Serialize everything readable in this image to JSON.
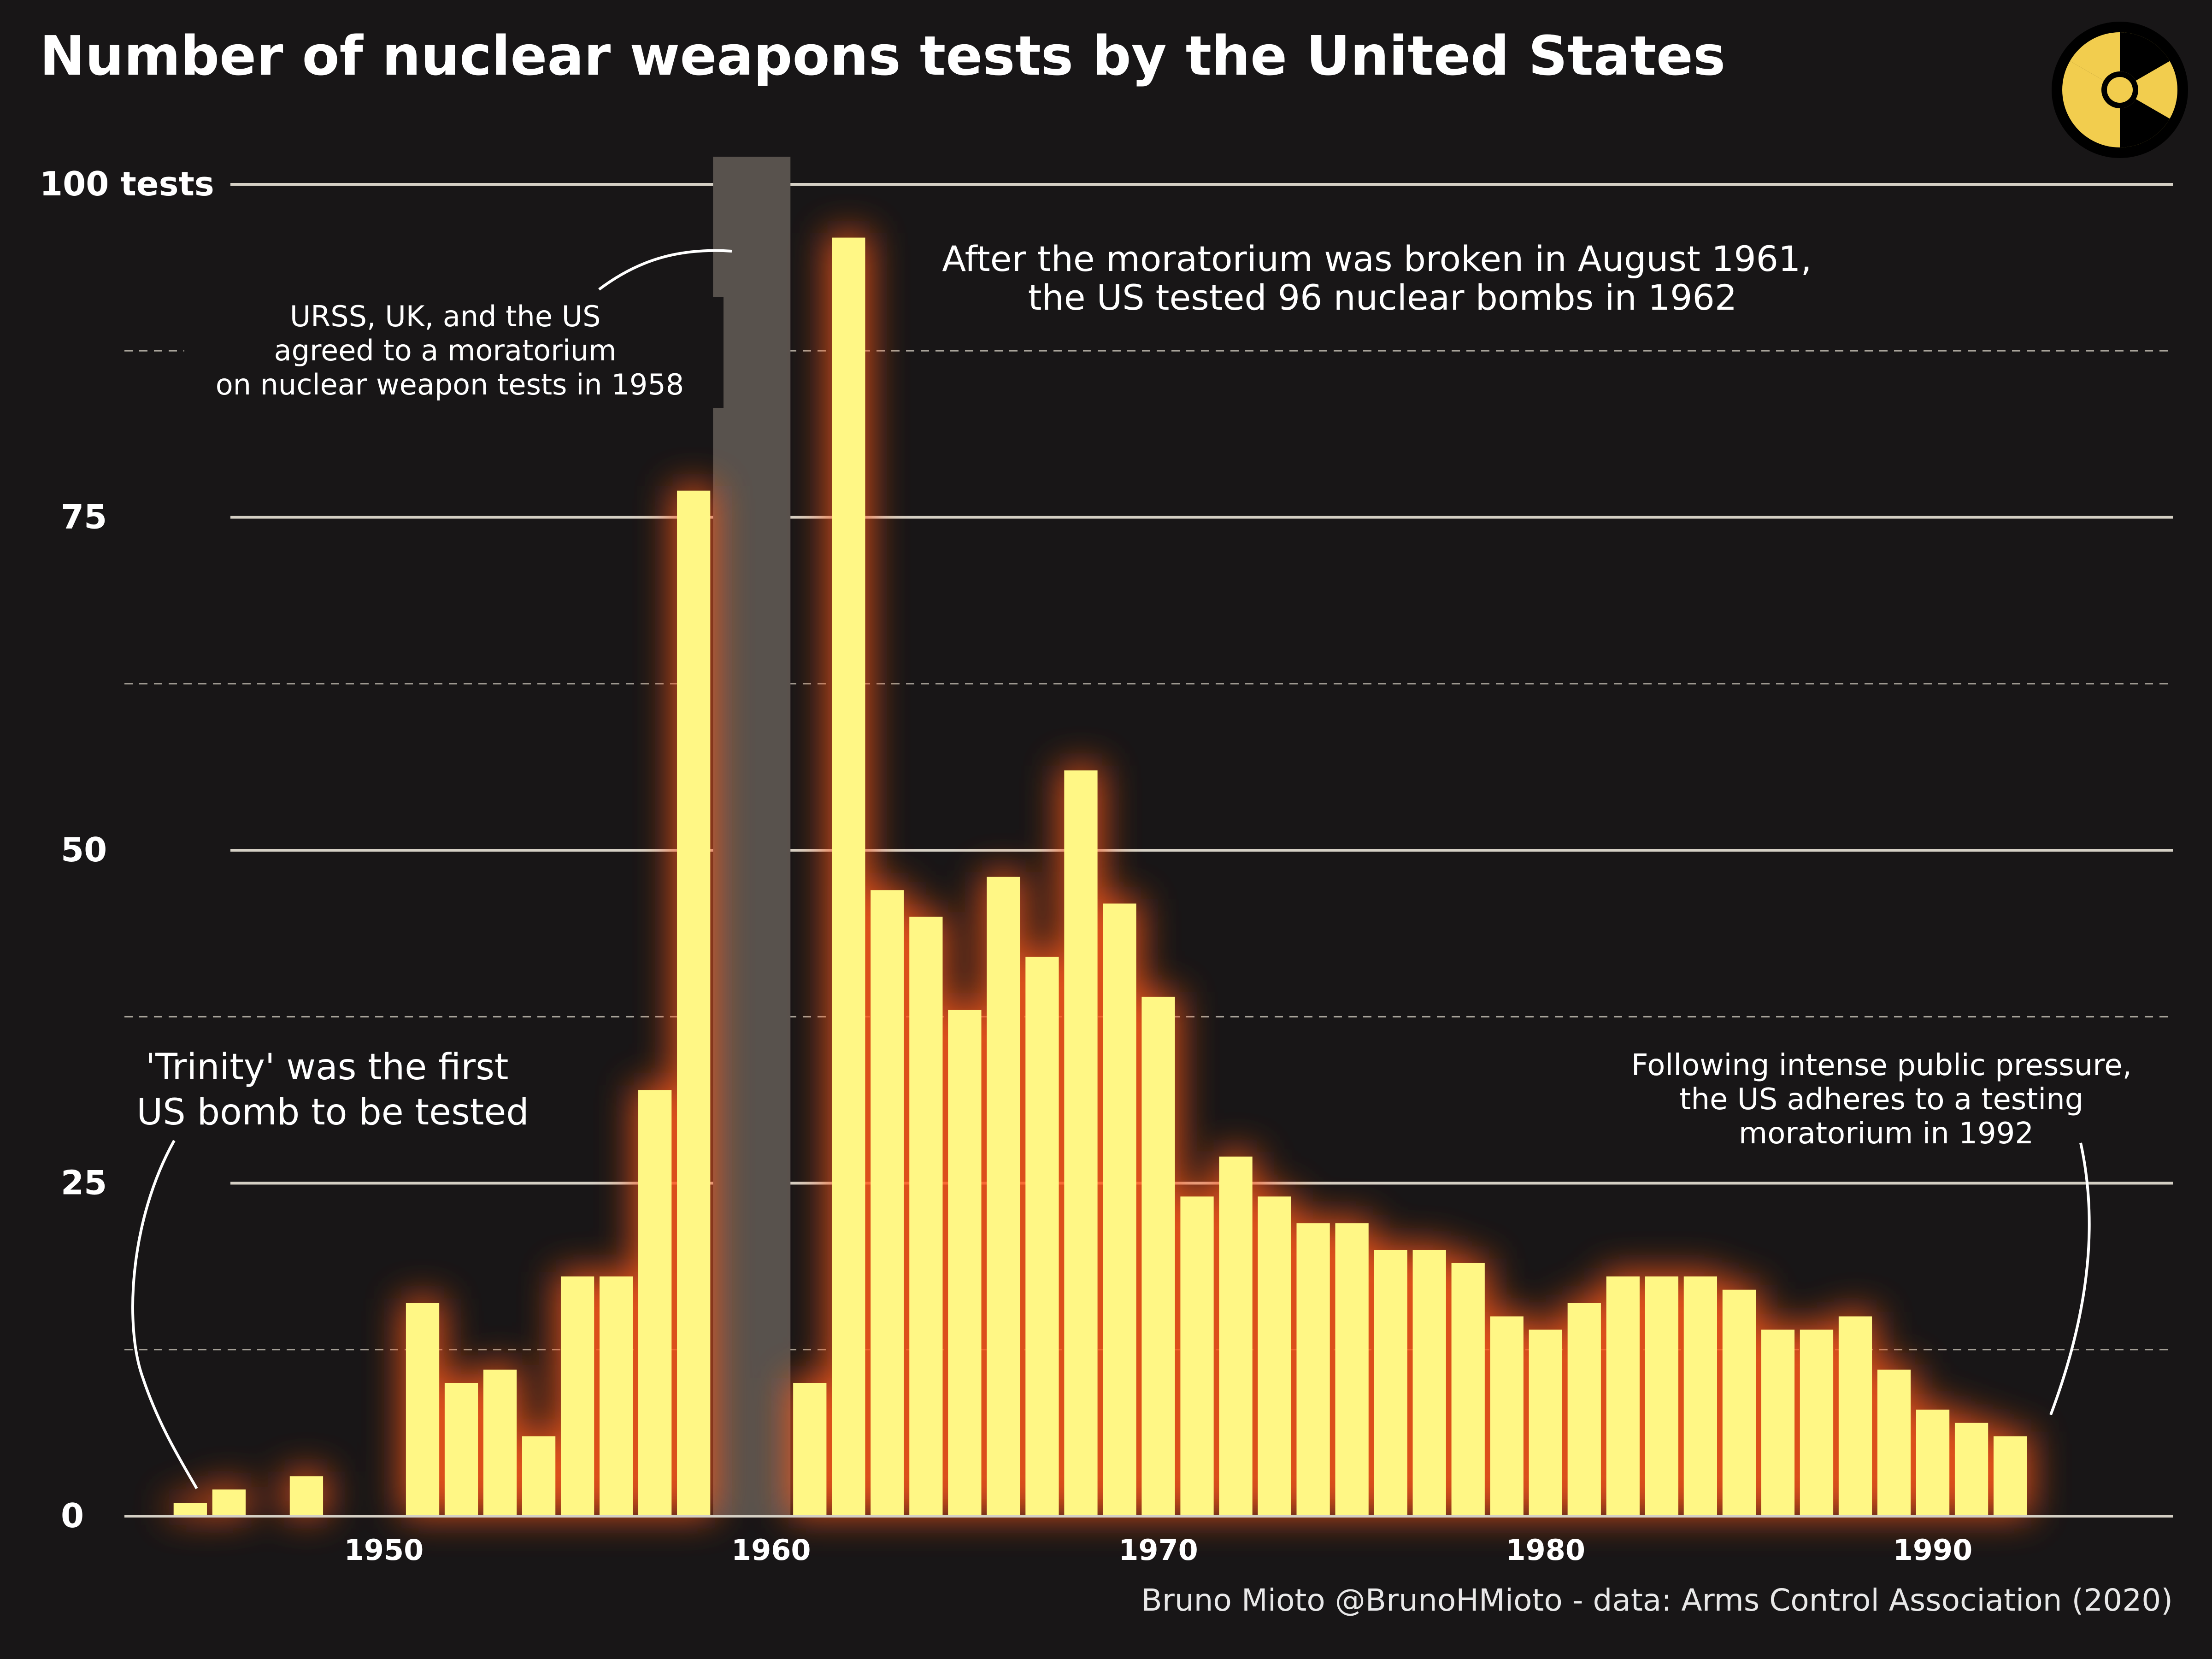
{
  "chart_data": {
    "type": "bar",
    "title": "Number of nuclear weapons tests by the United States",
    "x": [
      1945,
      1946,
      1948,
      1951,
      1952,
      1953,
      1954,
      1955,
      1956,
      1957,
      1958,
      1961,
      1962,
      1963,
      1964,
      1965,
      1966,
      1967,
      1968,
      1969,
      1970,
      1971,
      1972,
      1973,
      1974,
      1975,
      1976,
      1977,
      1978,
      1979,
      1980,
      1981,
      1982,
      1983,
      1984,
      1985,
      1986,
      1987,
      1988,
      1989,
      1990,
      1991,
      1992
    ],
    "values": [
      1,
      2,
      3,
      16,
      10,
      11,
      6,
      18,
      18,
      32,
      77,
      10,
      96,
      47,
      45,
      38,
      48,
      42,
      56,
      46,
      39,
      24,
      27,
      24,
      22,
      22,
      20,
      20,
      19,
      15,
      14,
      16,
      18,
      18,
      18,
      17,
      14,
      14,
      15,
      11,
      8,
      7,
      6
    ],
    "xlim": [
      1943.3,
      1996.2
    ],
    "ylim": [
      0,
      100
    ],
    "y_major_ticks": [
      0,
      25,
      50,
      75,
      100
    ],
    "y_tick_labels": [
      "0",
      "25",
      "50",
      "75",
      "100 tests"
    ],
    "y_minor_gridlines": [
      12.5,
      37.5,
      62.5,
      87.5
    ],
    "x_ticks": [
      1950,
      1960,
      1970,
      1980,
      1990
    ],
    "x_tick_labels": [
      "1950",
      "1960",
      "1970",
      "1980",
      "1990"
    ],
    "shaded_period": [
      1958.5,
      1960.5
    ],
    "grid": true,
    "colors": {
      "background": "#181617",
      "bar": "#fff785",
      "bar_glow": "#ff5a1a",
      "shade": "#58524d",
      "major_grid": "#d4cfc4",
      "minor_grid": "#a8a39a",
      "icon_yellow": "#f2cd4e"
    },
    "annotations": [
      {
        "id": "trinity",
        "lines": [
          "'Trinity' was the first",
          "US bomb to be tested"
        ]
      },
      {
        "id": "moratorium1958",
        "lines": [
          "URSS, UK, and the US",
          "agreed to a moratorium",
          "on nuclear weapon tests in 1958"
        ]
      },
      {
        "id": "broken1961",
        "lines": [
          "After the moratorium was broken in August 1961,",
          "the US tested 96 nuclear bombs in 1962"
        ]
      },
      {
        "id": "moratorium1992",
        "lines": [
          "Following intense public pressure,",
          "the US adheres to a testing",
          "moratorium in 1992"
        ]
      }
    ],
    "credit": "Bruno Mioto @BrunoHMioto - data: Arms Control Association (2020)"
  },
  "icon": "radiation-icon"
}
